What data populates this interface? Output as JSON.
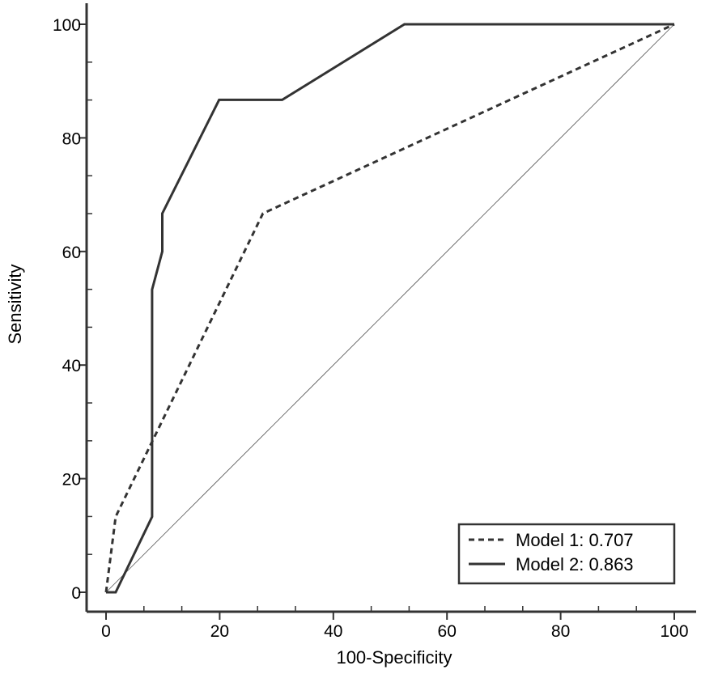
{
  "chart_data": {
    "type": "line",
    "title": "",
    "xlabel": "100-Specificity",
    "ylabel": "Sensitivity",
    "xlim": [
      0,
      100
    ],
    "ylim": [
      0,
      100
    ],
    "x_ticks": [
      0,
      20,
      40,
      60,
      80,
      100
    ],
    "y_ticks": [
      0,
      20,
      40,
      60,
      80,
      100
    ],
    "x_ticks_minor": [
      6.667,
      13.333,
      26.667,
      33.333,
      46.667,
      53.333,
      66.667,
      73.333,
      86.667,
      93.333
    ],
    "y_ticks_minor": [
      6.667,
      13.333,
      26.667,
      33.333,
      46.667,
      53.333,
      66.667,
      73.333,
      86.667,
      93.333
    ],
    "grid": false,
    "legend_position": "bottom-right",
    "reference_line": {
      "x": [
        0,
        100
      ],
      "y": [
        0,
        100
      ]
    },
    "series": [
      {
        "name": "Model 1: 0.707",
        "line_style": "dashed",
        "x": [
          0,
          1.7,
          27.6,
          100
        ],
        "y": [
          0,
          13.3,
          66.7,
          100
        ]
      },
      {
        "name": "Model 2: 0.863",
        "line_style": "solid",
        "x": [
          0,
          1.7,
          8.1,
          8.1,
          9.9,
          9.9,
          19.9,
          31.0,
          52.5,
          100
        ],
        "y": [
          0,
          0,
          13.3,
          53.3,
          60.0,
          66.7,
          86.7,
          86.7,
          100,
          100
        ]
      }
    ]
  }
}
